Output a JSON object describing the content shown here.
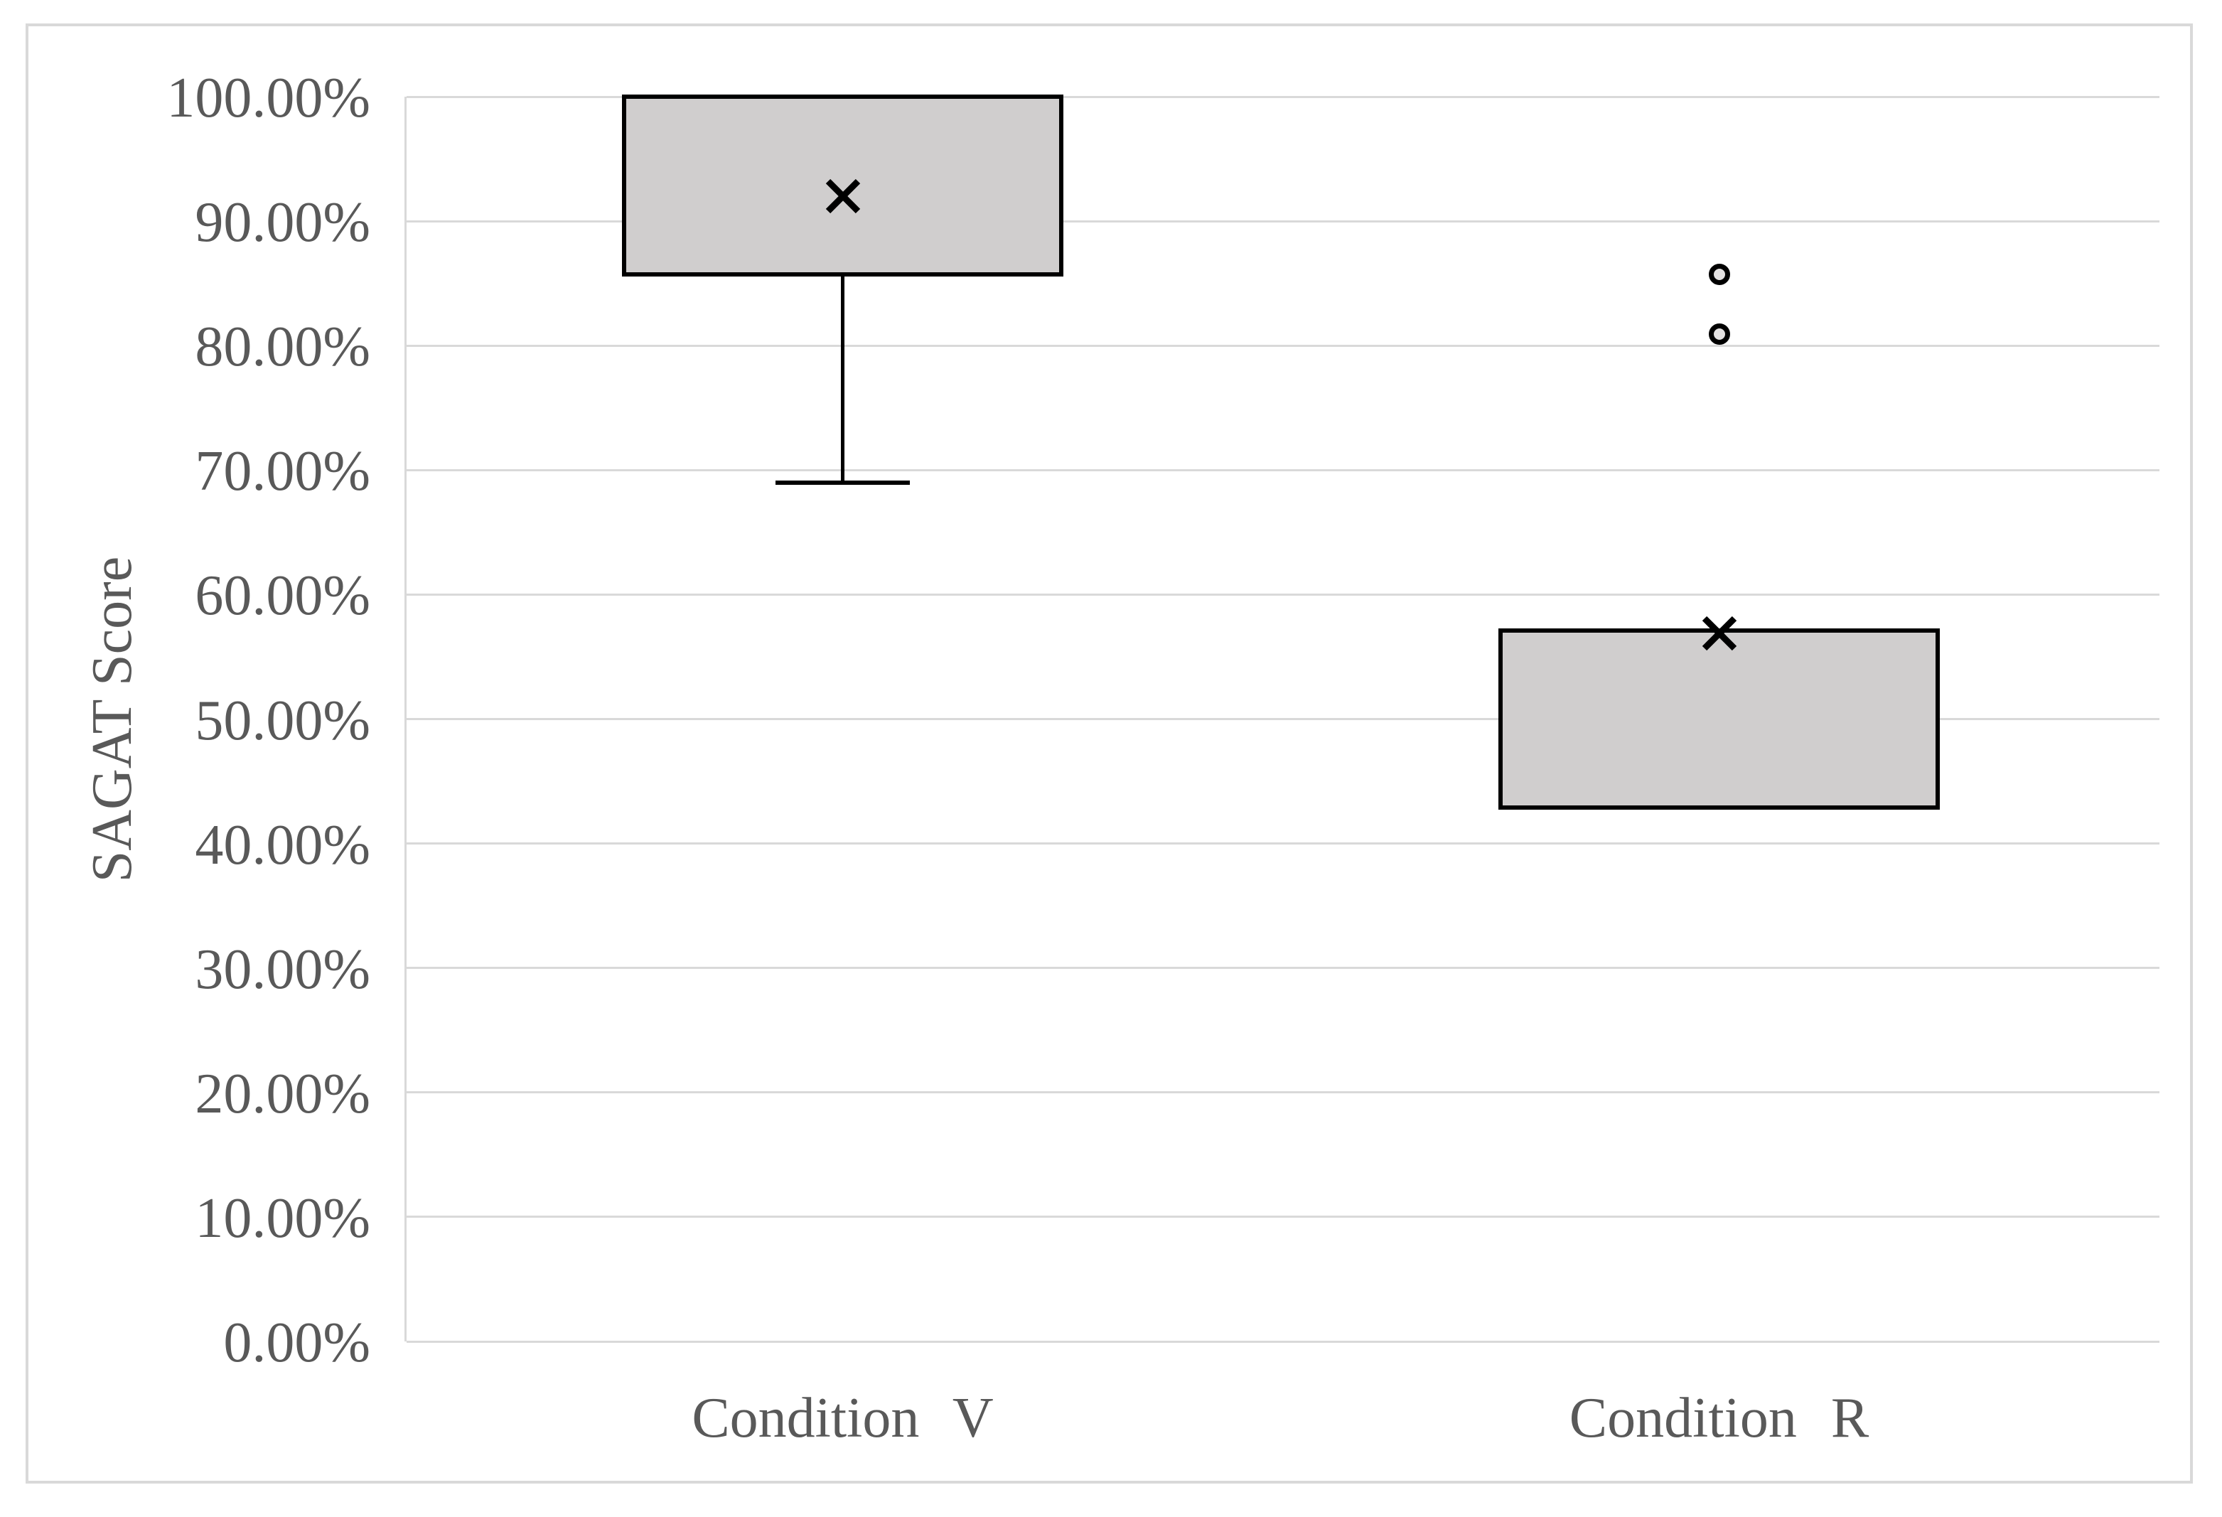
{
  "chart_data": {
    "type": "boxplot",
    "title": "",
    "xlabel": "",
    "ylabel": "SAGAT Score",
    "ylim": [
      0,
      100
    ],
    "y_tick_labels": [
      "100.00%",
      "90.00%",
      "80.00%",
      "70.00%",
      "60.00%",
      "50.00%",
      "40.00%",
      "30.00%",
      "20.00%",
      "10.00%",
      "0.00%"
    ],
    "y_tick_values": [
      100,
      90,
      80,
      70,
      60,
      50,
      40,
      30,
      20,
      10,
      0
    ],
    "categories": [
      "Condition V",
      "Condition R"
    ],
    "series": [
      {
        "name": "Condition V",
        "q1": 85.7,
        "q3": 100.0,
        "mean": 92.0,
        "whisker_low": 69.0,
        "whisker_high": null,
        "outliers": []
      },
      {
        "name": "Condition R",
        "q1": 42.9,
        "q3": 57.1,
        "mean": 56.9,
        "whisker_low": null,
        "whisker_high": null,
        "outliers": [
          85.7,
          80.9
        ]
      }
    ],
    "legend": "none",
    "grid": "horizontal"
  },
  "colors": {
    "background": "#FFFFFF",
    "frame_border": "#D9D9D9",
    "gridline": "#D9D9D9",
    "axis_text": "#595959",
    "box_fill": "#D0CECE",
    "box_border": "#000000",
    "marker": "#000000"
  }
}
